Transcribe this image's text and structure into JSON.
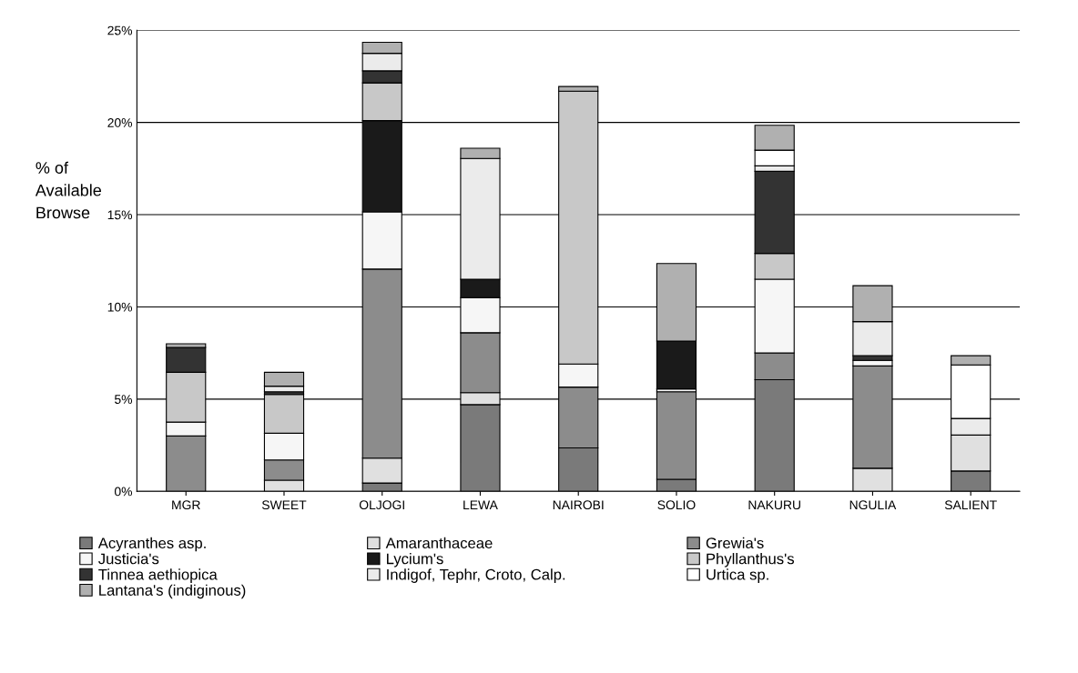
{
  "chart_data": {
    "type": "bar",
    "stacked": true,
    "ylabel": "% of\nAvailable\nBrowse",
    "categories": [
      "MGR",
      "SWEET",
      "OLJOGI",
      "LEWA",
      "NAIROBI",
      "SOLIO",
      "NAKURU",
      "NGULIA",
      "SALIENT"
    ],
    "series": [
      {
        "name": "Acyranthes asp.",
        "color": "#7a7a7a",
        "values": [
          0,
          0,
          0.45,
          4.7,
          2.35,
          0.65,
          6.05,
          0,
          1.1
        ]
      },
      {
        "name": "Amaranthaceae",
        "color": "#e0e0e0",
        "values": [
          0,
          0.6,
          1.35,
          0.65,
          0,
          0,
          0,
          1.25,
          1.95
        ]
      },
      {
        "name": "Grewia's",
        "color": "#8c8c8c",
        "values": [
          3.0,
          1.1,
          10.25,
          3.25,
          3.3,
          4.75,
          1.45,
          5.55,
          0
        ]
      },
      {
        "name": "Justicia's",
        "color": "#f6f6f6",
        "values": [
          0.75,
          1.45,
          3.1,
          1.9,
          1.25,
          0.15,
          4.0,
          0.3,
          0
        ]
      },
      {
        "name": "Lycium's",
        "color": "#1a1a1a",
        "values": [
          0,
          0,
          4.95,
          1.0,
          0,
          2.6,
          0,
          0,
          0
        ]
      },
      {
        "name": "Phyllanthus's",
        "color": "#c8c8c8",
        "values": [
          2.7,
          2.1,
          2.05,
          0,
          14.8,
          0,
          1.4,
          0,
          0
        ]
      },
      {
        "name": "Tinnea aethiopica",
        "color": "#333333",
        "values": [
          1.35,
          0.15,
          0.65,
          0,
          0,
          0,
          4.45,
          0.25,
          0
        ]
      },
      {
        "name": "Indigof, Tephr, Croto, Calp.",
        "color": "#ebebeb",
        "values": [
          0,
          0.3,
          0.95,
          6.55,
          0,
          0,
          0.3,
          1.85,
          0.9
        ]
      },
      {
        "name": "Urtica sp.",
        "color": "#ffffff",
        "values": [
          0,
          0,
          0,
          0,
          0,
          0,
          0.85,
          0,
          2.9
        ]
      },
      {
        "name": "Lantana's (indiginous)",
        "color": "#b0b0b0",
        "values": [
          0.2,
          0.75,
          0.6,
          0.55,
          0.25,
          4.2,
          1.35,
          1.95,
          0.5
        ]
      }
    ],
    "ylim": [
      0,
      25
    ],
    "yticks": [
      {
        "value": 0,
        "label": "0%"
      },
      {
        "value": 5,
        "label": "5%"
      },
      {
        "value": 10,
        "label": "10%"
      },
      {
        "value": 15,
        "label": "15%"
      },
      {
        "value": 20,
        "label": "20%"
      },
      {
        "value": 25,
        "label": "25%"
      }
    ],
    "grid": "y",
    "legend": "bottom"
  }
}
